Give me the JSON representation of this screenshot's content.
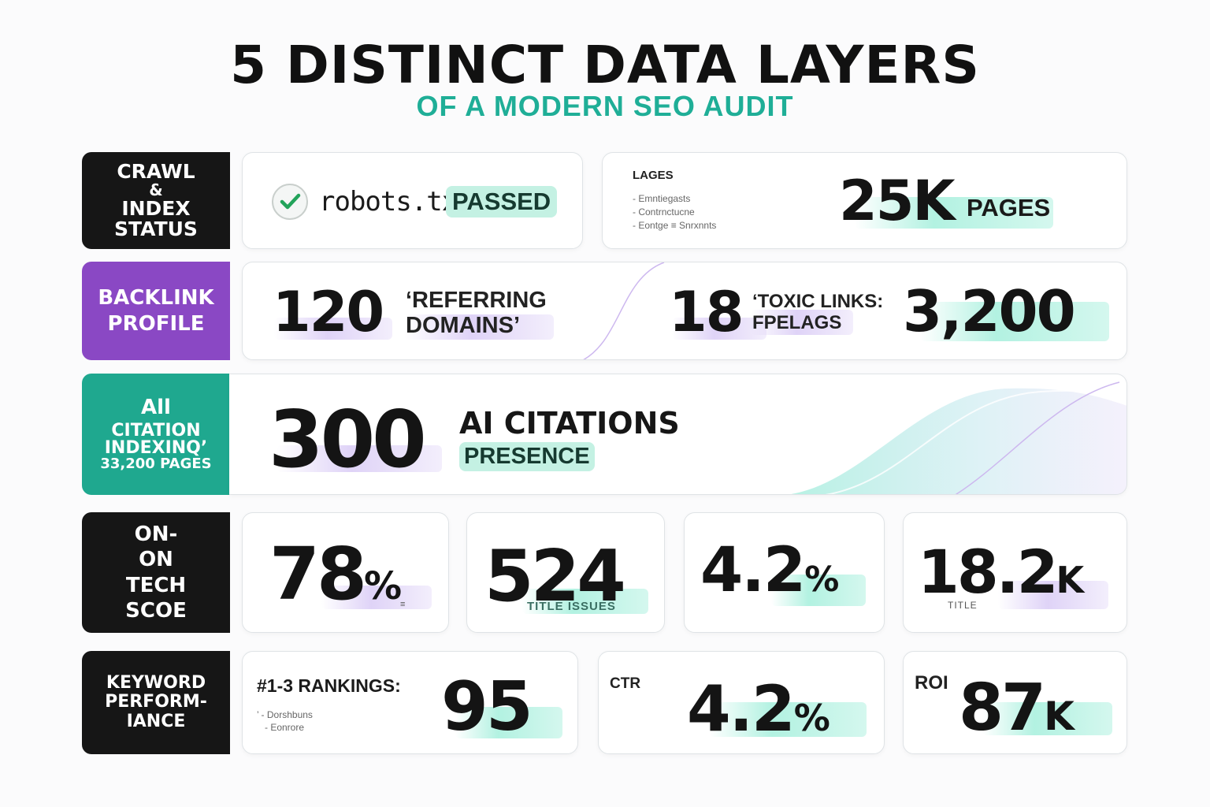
{
  "header": {
    "title": "5 DISTINCT DATA LAYERS",
    "subtitle": "OF A MODERN SEO AUDIT"
  },
  "colors": {
    "dark": "#161616",
    "purple": "#8a48c4",
    "teal": "#1fa88f",
    "accent_mint": "#aaf0de",
    "accent_lavender": "#d7c8f5"
  },
  "crawl": {
    "label": [
      "CRAWL",
      "&",
      "INDEX",
      "STATUS"
    ],
    "robots_text": "robots.txt",
    "robots_status": "PASSED",
    "pages_title": "LAGES",
    "pages_list": [
      "Emntiegasts",
      "Contrnctucne",
      "Eontge ≡ Snrxnnts"
    ],
    "pages_value": "25K",
    "pages_unit": "PAGES"
  },
  "backlink": {
    "label": [
      "BACKLINK",
      "PROFILE"
    ],
    "domains_value": "120",
    "domains_text": [
      "‘REFERRING",
      "DOMAINS’"
    ],
    "toxic_value": "18",
    "toxic_text": [
      "‘TOXIC LINKS:",
      "FPELAGS"
    ],
    "total_value": "3,200"
  },
  "ai": {
    "label": [
      "All",
      "CITATION",
      "INDEXINQ’",
      "33,200 PAGES"
    ],
    "value": "300",
    "text": "AI CITATIONS",
    "tag": "PRESENCE"
  },
  "onpage": {
    "label": [
      "ON-",
      "ON",
      "TECH",
      "SCOE"
    ],
    "stat1_value": "78",
    "stat1_unit": "%",
    "stat1_note": "≡",
    "stat2_value": "524",
    "stat2_note": "TITLE ISSUES",
    "stat3_value": "4.2",
    "stat3_unit": "%",
    "stat4_value": "18.2",
    "stat4_unit": "K",
    "stat4_note": "TITLE"
  },
  "keyword": {
    "label": [
      "KEYWORD",
      "PERFORM-",
      "IANCE"
    ],
    "rank_title": "#1-3 RANKINGS:",
    "rank_list": [
      "’ - Dorshbuns",
      "- Eonrore"
    ],
    "rank_value": "95",
    "ctr_label": "CTR",
    "ctr_value": "4.2",
    "ctr_unit": "%",
    "roi_label": "ROI",
    "roi_value": "87",
    "roi_unit": "K"
  }
}
